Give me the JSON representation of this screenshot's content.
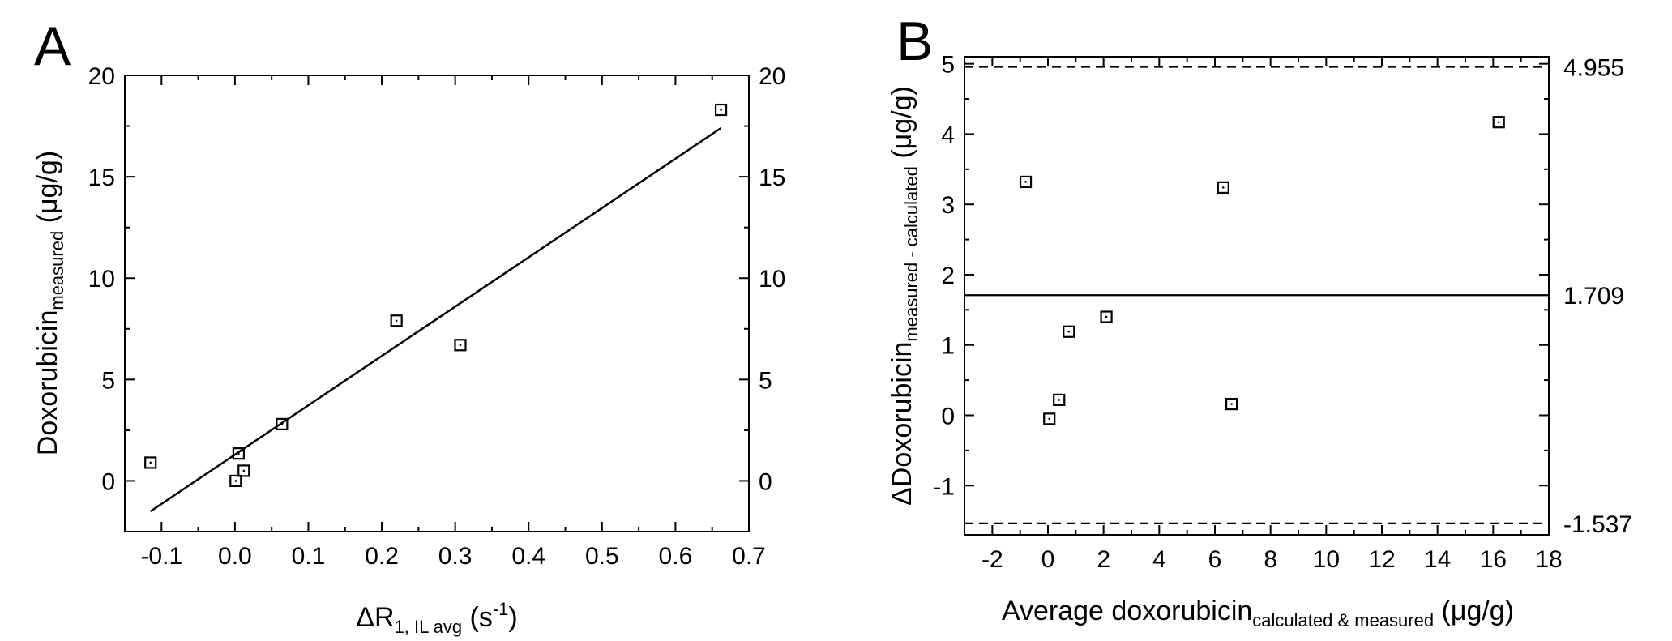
{
  "chart_data": [
    {
      "panel": "A",
      "type": "scatter",
      "title": "",
      "xlabel": {
        "prefix": "ΔR",
        "sub": "1, IL avg",
        "suffix": " (s",
        "sup": "-1",
        "end": ")"
      },
      "ylabel": {
        "prefix": "Doxorubicin",
        "sub": "measured",
        "suffix": " (μg/g)"
      },
      "xlim": [
        -0.15,
        0.7
      ],
      "ylim": [
        -2.5,
        20
      ],
      "xticks": [
        -0.1,
        0.0,
        0.1,
        0.2,
        0.3,
        0.4,
        0.5,
        0.6,
        0.7
      ],
      "xtick_labels": [
        "-0.1",
        "0.0",
        "0.1",
        "0.2",
        "0.3",
        "0.4",
        "0.5",
        "0.6",
        "0.7"
      ],
      "yticks": [
        0,
        5,
        10,
        15,
        20
      ],
      "ytick_labels": [
        "0",
        "5",
        "10",
        "15",
        "20"
      ],
      "right_ytick_labels": [
        "0",
        "5",
        "10",
        "15",
        "20"
      ],
      "points": [
        {
          "x": -0.115,
          "y": 0.9
        },
        {
          "x": 0.001,
          "y": 0.0
        },
        {
          "x": 0.005,
          "y": 1.35
        },
        {
          "x": 0.012,
          "y": 0.5
        },
        {
          "x": 0.064,
          "y": 2.8
        },
        {
          "x": 0.22,
          "y": 7.9
        },
        {
          "x": 0.307,
          "y": 6.7
        },
        {
          "x": 0.662,
          "y": 18.3
        }
      ],
      "fit_line": {
        "x": [
          -0.115,
          0.662
        ],
        "y": [
          -1.5,
          17.4
        ]
      }
    },
    {
      "panel": "B",
      "type": "scatter",
      "title": "",
      "xlabel": {
        "prefix": "Average doxorubicin",
        "sub": "calculated & measured",
        "suffix": " (μg/g)"
      },
      "ylabel": {
        "prefix": "ΔDoxorubicin",
        "sub": "measured - calculated",
        "suffix": " (μg/g)"
      },
      "xlim": [
        -3,
        18
      ],
      "ylim": [
        -1.7,
        5.1
      ],
      "xticks": [
        -2,
        0,
        2,
        4,
        6,
        8,
        10,
        12,
        14,
        16,
        18
      ],
      "xtick_labels": [
        "-2",
        "0",
        "2",
        "4",
        "6",
        "8",
        "10",
        "12",
        "14",
        "16",
        "18"
      ],
      "yticks": [
        -1,
        0,
        1,
        2,
        3,
        4,
        5
      ],
      "ytick_labels": [
        "-1",
        "0",
        "1",
        "2",
        "3",
        "4",
        "5"
      ],
      "points": [
        {
          "x": -0.8,
          "y": 3.32
        },
        {
          "x": 0.05,
          "y": -0.05
        },
        {
          "x": 0.4,
          "y": 0.22
        },
        {
          "x": 0.75,
          "y": 1.19
        },
        {
          "x": 2.1,
          "y": 1.4
        },
        {
          "x": 6.3,
          "y": 3.24
        },
        {
          "x": 6.6,
          "y": 0.16
        },
        {
          "x": 16.2,
          "y": 4.17
        }
      ],
      "reference_lines": [
        {
          "name": "upper-limit",
          "y": 4.955,
          "style": "dashed",
          "label": "4.955"
        },
        {
          "name": "mean",
          "y": 1.709,
          "style": "solid",
          "label": "1.709"
        },
        {
          "name": "lower-limit",
          "y": -1.537,
          "style": "dashed",
          "label": "-1.537"
        }
      ]
    }
  ]
}
